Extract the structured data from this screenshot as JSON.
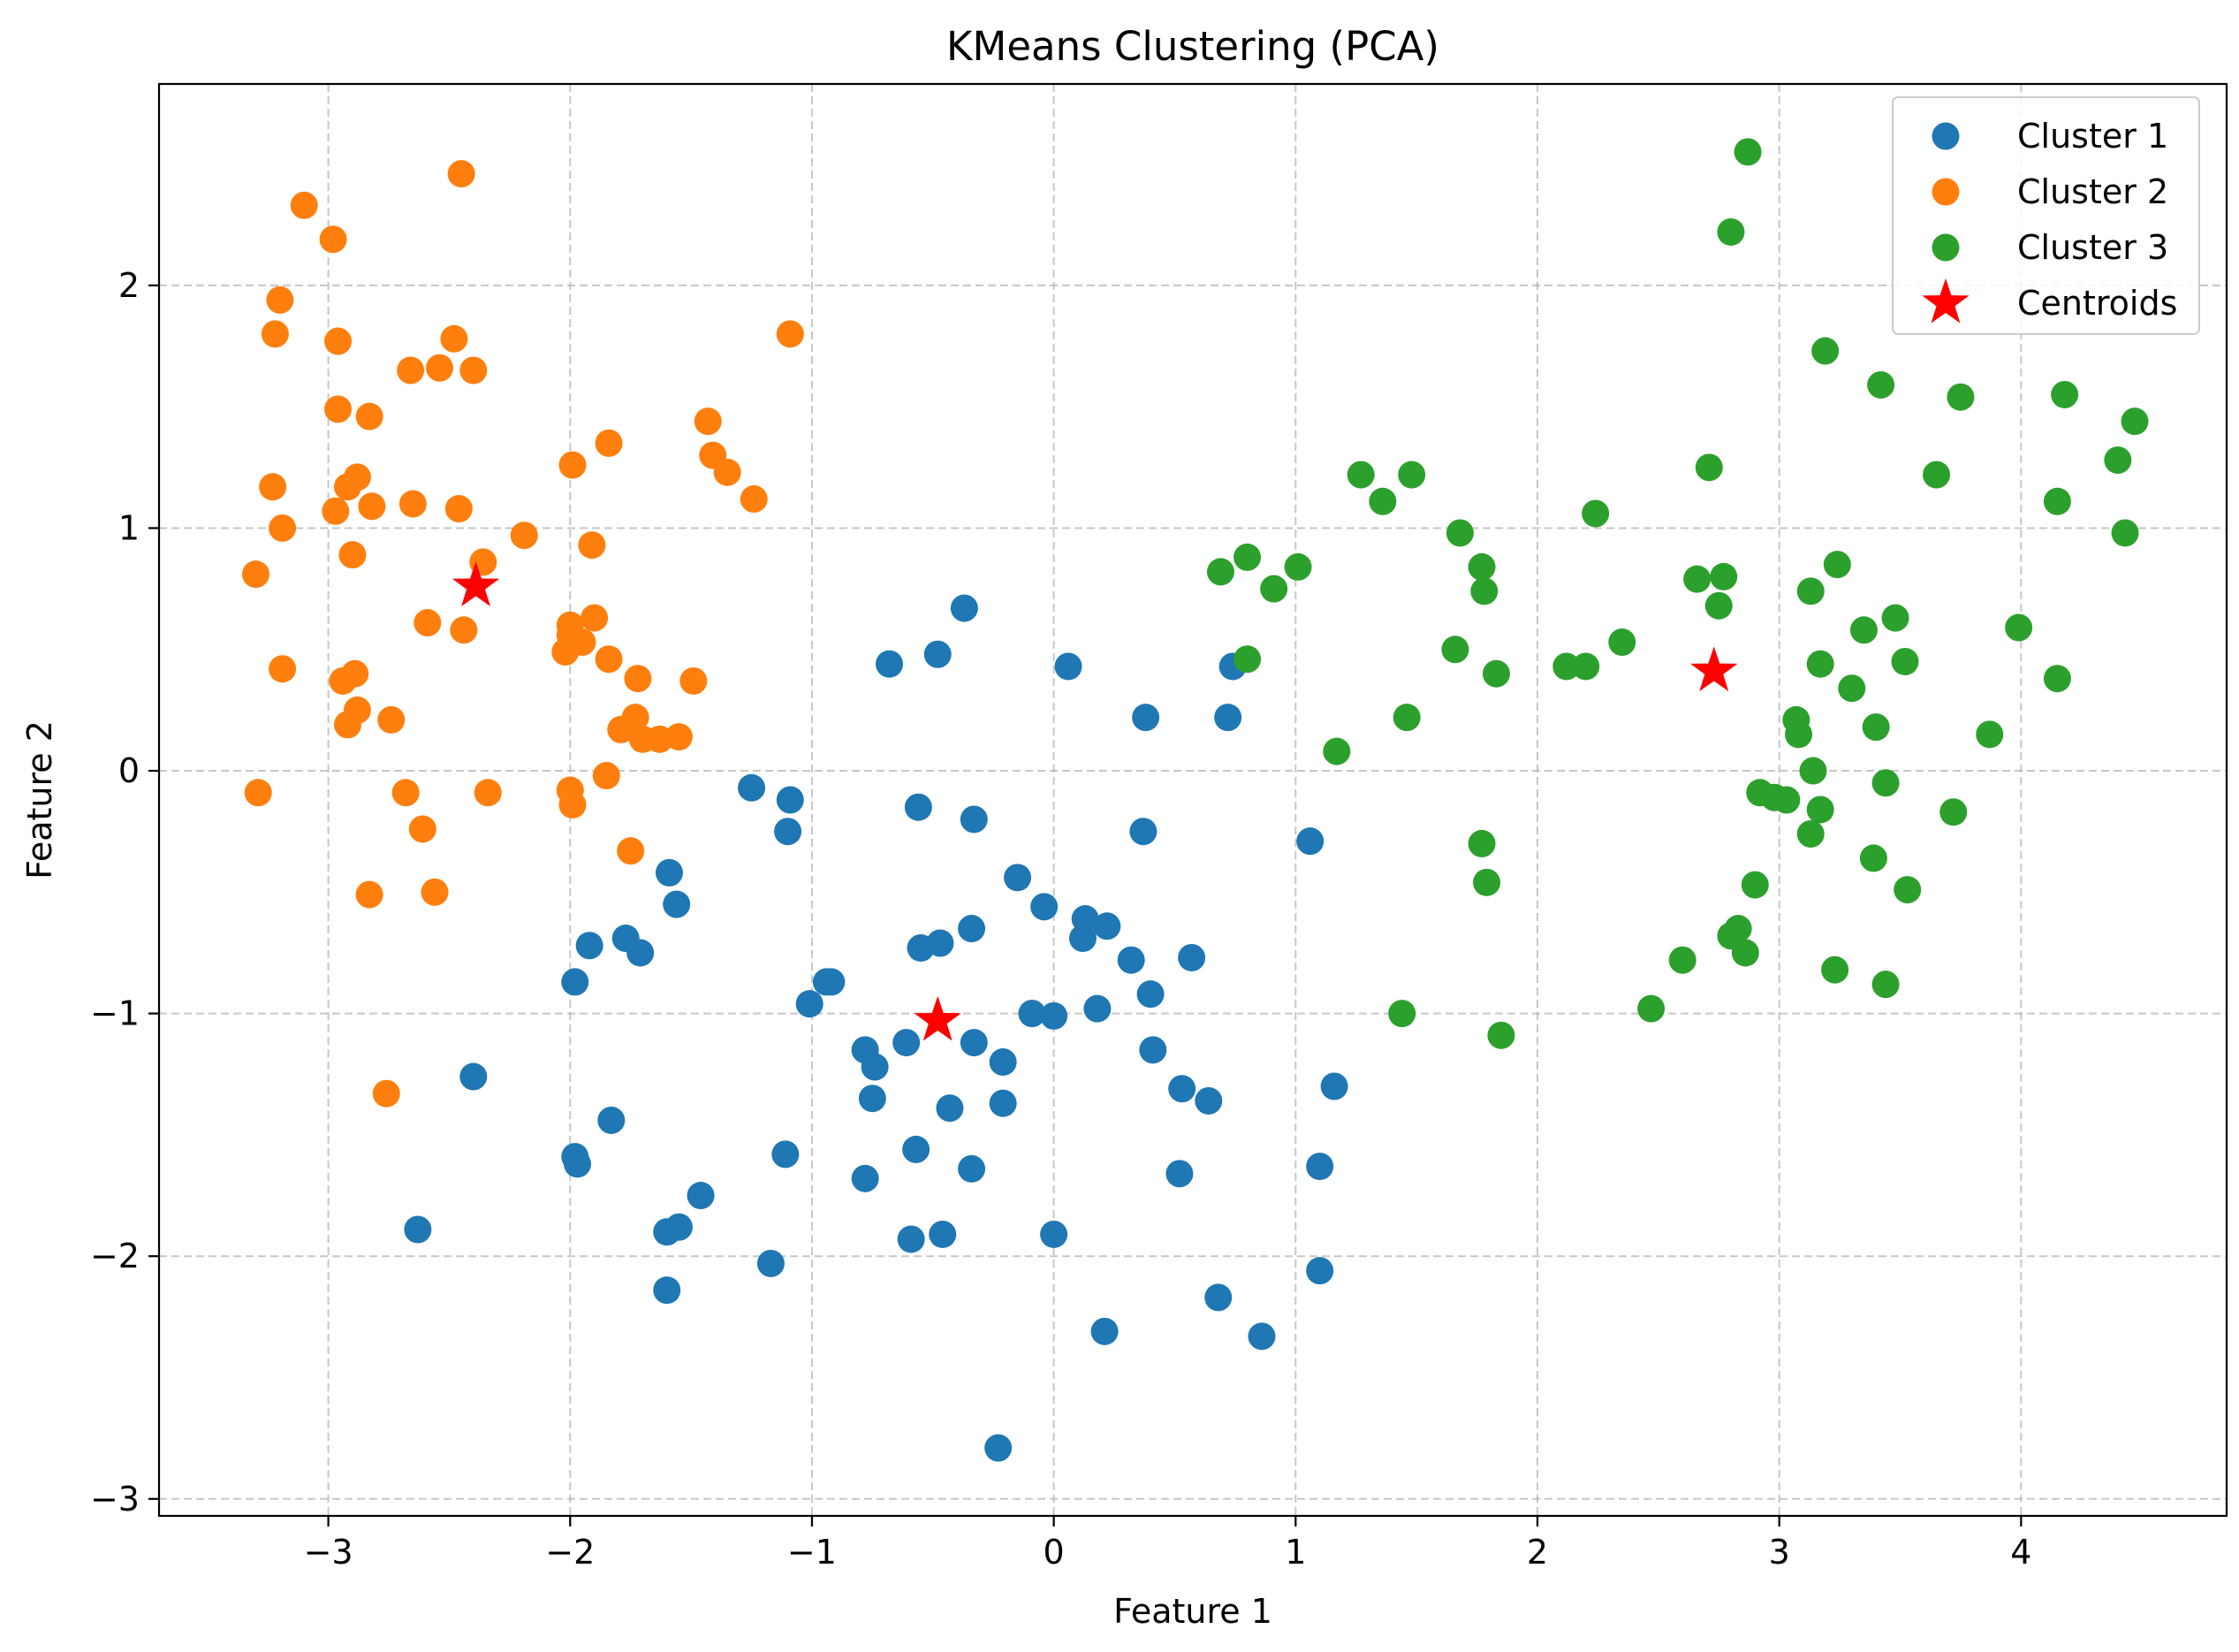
{
  "chart_data": {
    "type": "scatter",
    "title": "KMeans Clustering (PCA)",
    "xlabel": "Feature 1",
    "ylabel": "Feature 2",
    "xlim": [
      -3.7,
      4.85
    ],
    "ylim": [
      -3.07,
      2.83
    ],
    "xticks": [
      -3,
      -2,
      -1,
      0,
      1,
      2,
      3,
      4
    ],
    "yticks": [
      -3,
      -2,
      -1,
      0,
      1,
      2
    ],
    "xtick_labels": [
      "−3",
      "−2",
      "−1",
      "0",
      "1",
      "2",
      "3",
      "4"
    ],
    "ytick_labels": [
      "−3",
      "−2",
      "−1",
      "0",
      "1",
      "2"
    ],
    "grid": true,
    "legend_position": "top-right",
    "series": [
      {
        "name": "Cluster 1",
        "color": "#1f77b4",
        "marker": "circle",
        "points": [
          [
            -0.37,
            0.67
          ],
          [
            -0.48,
            0.48
          ],
          [
            -0.68,
            0.44
          ],
          [
            0.06,
            0.43
          ],
          [
            0.74,
            0.43
          ],
          [
            0.38,
            0.22
          ],
          [
            0.72,
            0.22
          ],
          [
            -1.25,
            -0.07
          ],
          [
            -1.09,
            -0.12
          ],
          [
            -0.56,
            -0.15
          ],
          [
            -0.33,
            -0.2
          ],
          [
            -1.1,
            -0.25
          ],
          [
            0.37,
            -0.25
          ],
          [
            1.06,
            -0.29
          ],
          [
            -1.59,
            -0.42
          ],
          [
            -0.15,
            -0.44
          ],
          [
            -1.56,
            -0.55
          ],
          [
            -0.04,
            -0.56
          ],
          [
            0.13,
            -0.61
          ],
          [
            0.22,
            -0.64
          ],
          [
            -0.34,
            -0.65
          ],
          [
            0.12,
            -0.69
          ],
          [
            -1.77,
            -0.69
          ],
          [
            -0.47,
            -0.71
          ],
          [
            -1.92,
            -0.72
          ],
          [
            -0.55,
            -0.73
          ],
          [
            -1.71,
            -0.75
          ],
          [
            0.57,
            -0.77
          ],
          [
            0.32,
            -0.78
          ],
          [
            -1.98,
            -0.87
          ],
          [
            -0.94,
            -0.87
          ],
          [
            -0.92,
            -0.87
          ],
          [
            0.4,
            -0.92
          ],
          [
            -1.01,
            -0.96
          ],
          [
            0.18,
            -0.98
          ],
          [
            -0.09,
            -1.0
          ],
          [
            0.0,
            -1.01
          ],
          [
            -0.61,
            -1.12
          ],
          [
            -0.33,
            -1.12
          ],
          [
            -0.78,
            -1.15
          ],
          [
            0.41,
            -1.15
          ],
          [
            -0.21,
            -1.2
          ],
          [
            -0.74,
            -1.22
          ],
          [
            -2.4,
            -1.26
          ],
          [
            1.16,
            -1.3
          ],
          [
            0.53,
            -1.31
          ],
          [
            -0.75,
            -1.35
          ],
          [
            0.64,
            -1.36
          ],
          [
            -0.21,
            -1.37
          ],
          [
            -0.43,
            -1.39
          ],
          [
            -1.83,
            -1.44
          ],
          [
            -0.57,
            -1.56
          ],
          [
            -1.11,
            -1.58
          ],
          [
            -1.98,
            -1.59
          ],
          [
            -1.97,
            -1.62
          ],
          [
            1.1,
            -1.63
          ],
          [
            -0.34,
            -1.64
          ],
          [
            0.52,
            -1.66
          ],
          [
            -0.78,
            -1.68
          ],
          [
            -1.46,
            -1.75
          ],
          [
            -1.55,
            -1.88
          ],
          [
            -2.63,
            -1.89
          ],
          [
            -1.6,
            -1.9
          ],
          [
            -0.46,
            -1.91
          ],
          [
            0.0,
            -1.91
          ],
          [
            -0.59,
            -1.93
          ],
          [
            -1.17,
            -2.03
          ],
          [
            1.1,
            -2.06
          ],
          [
            -1.6,
            -2.14
          ],
          [
            0.68,
            -2.17
          ],
          [
            0.21,
            -2.31
          ],
          [
            0.86,
            -2.33
          ],
          [
            -0.23,
            -2.79
          ]
        ]
      },
      {
        "name": "Cluster 2",
        "color": "#ff7f0e",
        "marker": "circle",
        "points": [
          [
            -2.45,
            2.46
          ],
          [
            -3.1,
            2.33
          ],
          [
            -2.98,
            2.19
          ],
          [
            -3.2,
            1.94
          ],
          [
            -3.22,
            1.8
          ],
          [
            -2.48,
            1.78
          ],
          [
            -1.09,
            1.8
          ],
          [
            -2.96,
            1.77
          ],
          [
            -2.66,
            1.65
          ],
          [
            -2.54,
            1.66
          ],
          [
            -2.4,
            1.65
          ],
          [
            -2.96,
            1.49
          ],
          [
            -2.83,
            1.46
          ],
          [
            -1.43,
            1.44
          ],
          [
            -1.84,
            1.35
          ],
          [
            -1.41,
            1.3
          ],
          [
            -1.99,
            1.26
          ],
          [
            -1.35,
            1.23
          ],
          [
            -2.88,
            1.21
          ],
          [
            -2.92,
            1.17
          ],
          [
            -3.23,
            1.17
          ],
          [
            -1.24,
            1.12
          ],
          [
            -2.65,
            1.1
          ],
          [
            -2.82,
            1.09
          ],
          [
            -2.97,
            1.07
          ],
          [
            -2.46,
            1.08
          ],
          [
            -3.19,
            1.0
          ],
          [
            -2.19,
            0.97
          ],
          [
            -1.91,
            0.93
          ],
          [
            -2.9,
            0.89
          ],
          [
            -2.36,
            0.86
          ],
          [
            -3.3,
            0.81
          ],
          [
            -1.9,
            0.63
          ],
          [
            -2.59,
            0.61
          ],
          [
            -2.0,
            0.6
          ],
          [
            -2.44,
            0.58
          ],
          [
            -2.0,
            0.56
          ],
          [
            -1.95,
            0.53
          ],
          [
            -2.02,
            0.49
          ],
          [
            -1.84,
            0.46
          ],
          [
            -3.19,
            0.42
          ],
          [
            -2.89,
            0.4
          ],
          [
            -1.72,
            0.38
          ],
          [
            -1.49,
            0.37
          ],
          [
            -2.94,
            0.37
          ],
          [
            -2.88,
            0.25
          ],
          [
            -1.73,
            0.22
          ],
          [
            -2.74,
            0.21
          ],
          [
            -2.92,
            0.19
          ],
          [
            -1.79,
            0.17
          ],
          [
            -1.7,
            0.13
          ],
          [
            -1.63,
            0.13
          ],
          [
            -1.55,
            0.14
          ],
          [
            -1.85,
            -0.02
          ],
          [
            -3.29,
            -0.09
          ],
          [
            -2.0,
            -0.08
          ],
          [
            -2.34,
            -0.09
          ],
          [
            -2.68,
            -0.09
          ],
          [
            -1.99,
            -0.14
          ],
          [
            -2.61,
            -0.24
          ],
          [
            -1.75,
            -0.33
          ],
          [
            -2.56,
            -0.5
          ],
          [
            -2.83,
            -0.51
          ],
          [
            -2.76,
            -1.33
          ]
        ]
      },
      {
        "name": "Cluster 3",
        "color": "#2ca02c",
        "marker": "circle",
        "points": [
          [
            2.87,
            2.55
          ],
          [
            2.8,
            2.22
          ],
          [
            3.19,
            1.73
          ],
          [
            3.42,
            1.59
          ],
          [
            4.18,
            1.55
          ],
          [
            3.75,
            1.54
          ],
          [
            4.47,
            1.44
          ],
          [
            4.4,
            1.28
          ],
          [
            2.71,
            1.25
          ],
          [
            1.27,
            1.22
          ],
          [
            1.48,
            1.22
          ],
          [
            3.65,
            1.22
          ],
          [
            1.36,
            1.11
          ],
          [
            4.15,
            1.11
          ],
          [
            2.24,
            1.06
          ],
          [
            1.68,
            0.98
          ],
          [
            4.43,
            0.98
          ],
          [
            0.8,
            0.88
          ],
          [
            0.69,
            0.82
          ],
          [
            1.01,
            0.84
          ],
          [
            1.77,
            0.84
          ],
          [
            3.24,
            0.85
          ],
          [
            2.66,
            0.79
          ],
          [
            2.77,
            0.8
          ],
          [
            0.91,
            0.75
          ],
          [
            1.78,
            0.74
          ],
          [
            3.13,
            0.74
          ],
          [
            2.75,
            0.68
          ],
          [
            3.48,
            0.63
          ],
          [
            3.99,
            0.59
          ],
          [
            3.35,
            0.58
          ],
          [
            2.35,
            0.53
          ],
          [
            1.66,
            0.5
          ],
          [
            0.8,
            0.46
          ],
          [
            3.17,
            0.44
          ],
          [
            3.52,
            0.45
          ],
          [
            2.12,
            0.43
          ],
          [
            2.2,
            0.43
          ],
          [
            1.83,
            0.4
          ],
          [
            4.15,
            0.38
          ],
          [
            3.3,
            0.34
          ],
          [
            1.46,
            0.22
          ],
          [
            3.07,
            0.21
          ],
          [
            3.4,
            0.18
          ],
          [
            3.08,
            0.15
          ],
          [
            3.87,
            0.15
          ],
          [
            1.17,
            0.08
          ],
          [
            3.14,
            0.0
          ],
          [
            3.44,
            -0.05
          ],
          [
            2.92,
            -0.09
          ],
          [
            2.98,
            -0.11
          ],
          [
            3.03,
            -0.12
          ],
          [
            3.17,
            -0.16
          ],
          [
            3.72,
            -0.17
          ],
          [
            3.13,
            -0.26
          ],
          [
            1.77,
            -0.3
          ],
          [
            3.39,
            -0.36
          ],
          [
            1.79,
            -0.46
          ],
          [
            2.9,
            -0.47
          ],
          [
            3.53,
            -0.49
          ],
          [
            2.83,
            -0.65
          ],
          [
            2.8,
            -0.68
          ],
          [
            2.86,
            -0.75
          ],
          [
            2.6,
            -0.78
          ],
          [
            3.23,
            -0.82
          ],
          [
            3.44,
            -0.88
          ],
          [
            2.47,
            -0.98
          ],
          [
            1.44,
            -1.0
          ],
          [
            1.85,
            -1.09
          ]
        ]
      },
      {
        "name": "Centroids",
        "color": "#ff0000",
        "marker": "star",
        "points": [
          [
            -2.39,
            0.76
          ],
          [
            -0.48,
            -1.03
          ],
          [
            2.73,
            0.41
          ]
        ]
      }
    ]
  }
}
